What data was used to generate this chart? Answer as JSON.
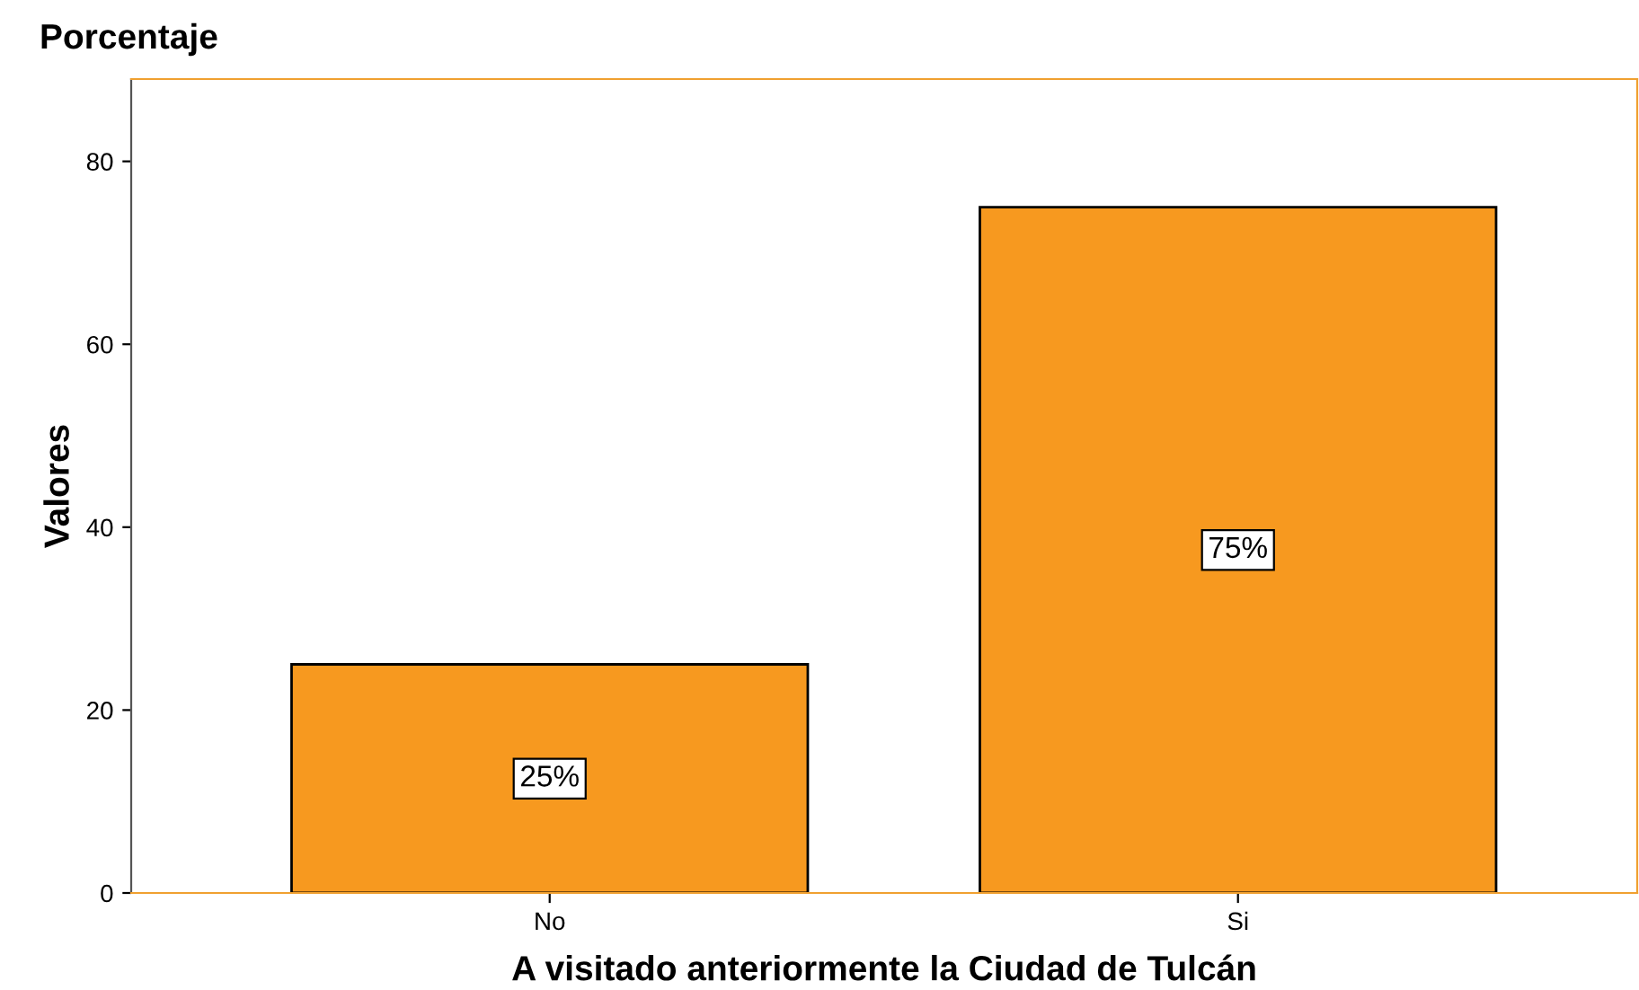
{
  "chart_data": {
    "type": "bar",
    "title": "Porcentaje",
    "xlabel": "A visitado anteriormente la Ciudad de Tulcán",
    "ylabel": "Valores",
    "categories": [
      "No",
      "Si"
    ],
    "values": [
      25,
      75
    ],
    "value_labels": [
      "25%",
      "75%"
    ],
    "color": "#f7991f",
    "ylim": [
      0,
      89
    ],
    "yticks": [
      0,
      20,
      40,
      60,
      80
    ],
    "grid": false,
    "legend": false
  }
}
